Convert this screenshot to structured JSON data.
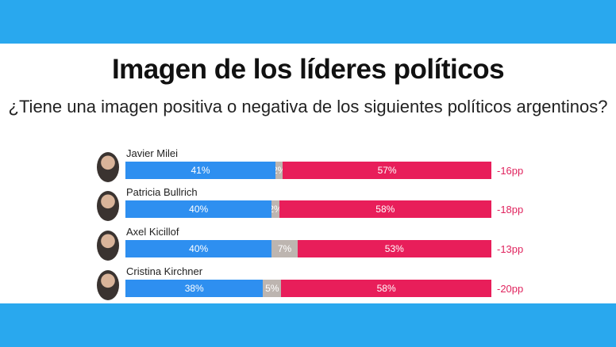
{
  "title": "Imagen de los líderes políticos",
  "subtitle": "¿Tiene una imagen positiva o negativa de los siguientes políticos argentinos?",
  "colors": {
    "band": "#29a8ee",
    "positive": "#2e8ff0",
    "neutral": "#bdb5b0",
    "negative": "#e81e5a",
    "diff": "#e0245e"
  },
  "chart_data": {
    "type": "bar",
    "stacked": true,
    "orientation": "horizontal",
    "title": "Imagen de los líderes políticos",
    "subtitle": "¿Tiene una imagen positiva o negativa de los siguientes políticos argentinos?",
    "categories": [
      "Javier Milei",
      "Patricia Bullrich",
      "Axel Kicillof",
      "Cristina Kirchner"
    ],
    "series": [
      {
        "values": [
          41,
          40,
          40,
          38
        ],
        "labels": [
          "41%",
          "40%",
          "40%",
          "38%"
        ]
      },
      {
        "values": [
          2,
          2,
          7,
          5
        ],
        "labels": [
          "2%",
          "2%",
          "7%",
          "5%"
        ]
      },
      {
        "values": [
          57,
          58,
          53,
          58
        ],
        "labels": [
          "57%",
          "58%",
          "53%",
          "58%"
        ]
      }
    ],
    "differences": [
      "-16pp",
      "-18pp",
      "-13pp",
      "-20pp"
    ]
  }
}
